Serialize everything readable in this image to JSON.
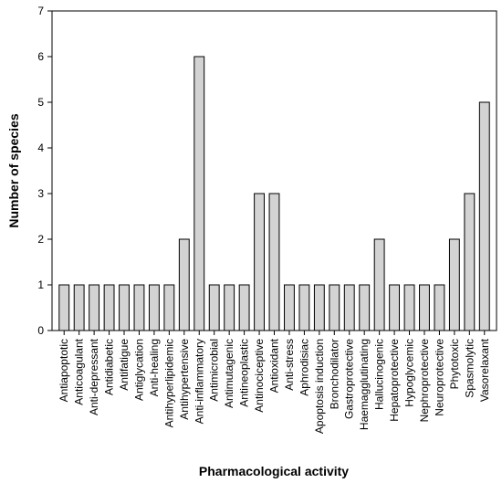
{
  "chart_data": {
    "type": "bar",
    "xlabel": "Pharmacological activity",
    "ylabel": "Number of species",
    "ylim": [
      0,
      7
    ],
    "yticks": [
      0,
      1,
      2,
      3,
      4,
      5,
      6,
      7
    ],
    "grid": false,
    "categories": [
      "Antiapoptotic",
      "Anticoagulant",
      "Anti-depressant",
      "Antidiabetic",
      "Antifatigue",
      "Antiglycation",
      "Anti-healing",
      "Antihyperlipidemic",
      "Antihypertensive",
      "Anti-inflammatory",
      "Antimicrobial",
      "Antimutagenic",
      "Antineoplastic",
      "Antinociceptive",
      "Antioxidant",
      "Anti-stress",
      "Aphrodisiac",
      "Apoptosis induction",
      "Bronchodilator",
      "Gastroprotective",
      "Haemagglutinating",
      "Hallucinogenic",
      "Hepatoprotective",
      "Hypoglycemic",
      "Nephroprotective",
      "Neuroprotective",
      "Phytotoxic",
      "Spasmolytic",
      "Vasorelaxant"
    ],
    "values": [
      1,
      1,
      1,
      1,
      1,
      1,
      1,
      1,
      2,
      6,
      1,
      1,
      1,
      3,
      3,
      1,
      1,
      1,
      1,
      1,
      1,
      2,
      1,
      1,
      1,
      1,
      2,
      3,
      5
    ],
    "colors": {
      "bar_fill": "#d3d3d3",
      "bar_stroke": "#000000"
    }
  }
}
